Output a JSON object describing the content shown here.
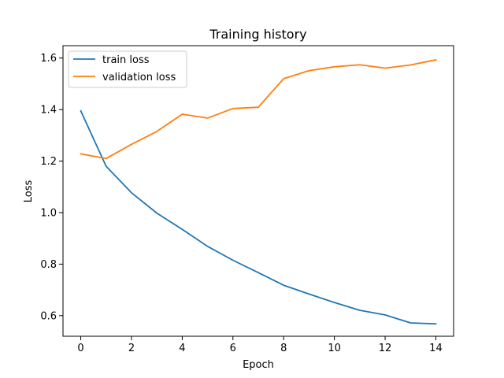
{
  "chart_data": {
    "type": "line",
    "title": "Training history",
    "xlabel": "Epoch",
    "ylabel": "Loss",
    "xlim": [
      -0.7,
      14.7
    ],
    "ylim": [
      0.52,
      1.648
    ],
    "xticks": [
      0,
      2,
      4,
      6,
      8,
      10,
      12,
      14
    ],
    "xtick_labels": [
      "0",
      "2",
      "4",
      "6",
      "8",
      "10",
      "12",
      "14"
    ],
    "yticks": [
      0.6,
      0.8,
      1.0,
      1.2,
      1.4,
      1.6
    ],
    "ytick_labels": [
      "0.6",
      "0.8",
      "1.0",
      "1.2",
      "1.4",
      "1.6"
    ],
    "grid": false,
    "legend_position": "top-left",
    "x": [
      0,
      1,
      2,
      3,
      4,
      5,
      6,
      7,
      8,
      9,
      10,
      11,
      12,
      13,
      14
    ],
    "series": [
      {
        "name": "train loss",
        "color": "#1f77b4",
        "values": [
          1.395,
          1.18,
          1.077,
          0.998,
          0.935,
          0.869,
          0.815,
          0.767,
          0.718,
          0.684,
          0.651,
          0.621,
          0.603,
          0.572,
          0.568
        ]
      },
      {
        "name": "validation loss",
        "color": "#ff7f0e",
        "values": [
          1.228,
          1.21,
          1.265,
          1.315,
          1.382,
          1.367,
          1.404,
          1.409,
          1.52,
          1.551,
          1.566,
          1.574,
          1.561,
          1.573,
          1.593
        ]
      }
    ]
  }
}
